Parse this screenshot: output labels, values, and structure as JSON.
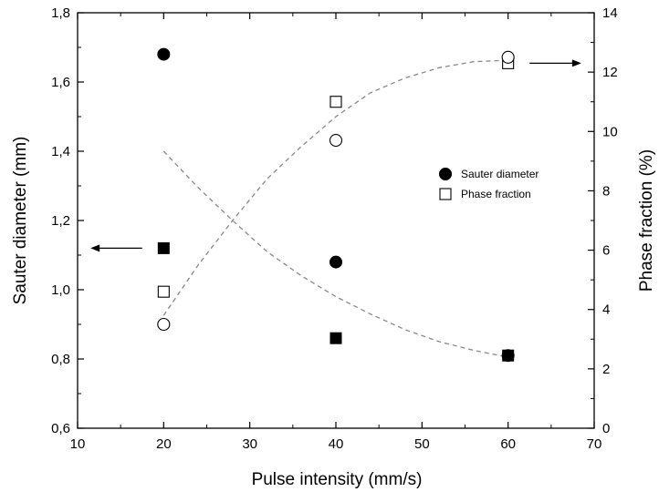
{
  "chart_data": {
    "type": "scatter",
    "xlabel": "Pulse intensity (mm/s)",
    "ylabel": "Sauter diameter (mm)",
    "y2label": "Phase fraction (%)",
    "xlim": [
      10,
      70
    ],
    "ylim": [
      0.6,
      1.8
    ],
    "y2lim": [
      0,
      14
    ],
    "xticks": [
      "10",
      "20",
      "30",
      "40",
      "50",
      "60",
      "70"
    ],
    "yticks": [
      "0,6",
      "0,8",
      "1,0",
      "1,2",
      "1,4",
      "1,6",
      "1,8"
    ],
    "y2ticks": [
      "0",
      "2",
      "4",
      "6",
      "8",
      "10",
      "12",
      "14"
    ],
    "grid": false,
    "legend_position": "right",
    "series": [
      {
        "name": "Sauter diameter",
        "axis": "left",
        "marker": "filled-circle",
        "x": [
          20,
          40,
          60
        ],
        "y": [
          1.68,
          1.08,
          0.81
        ]
      },
      {
        "name": "Phase fraction",
        "axis": "right",
        "marker": "open-square",
        "x": [
          20,
          40,
          60
        ],
        "y": [
          4.6,
          11.0,
          12.3
        ]
      },
      {
        "axis": "left",
        "marker": "filled-square",
        "x": [
          20,
          40,
          60
        ],
        "y": [
          1.12,
          0.86,
          0.81
        ]
      },
      {
        "axis": "right",
        "marker": "open-circle",
        "x": [
          20,
          40,
          60
        ],
        "y": [
          3.5,
          9.7,
          12.5
        ]
      }
    ],
    "fits": [
      {
        "axis": "left",
        "style": "dashed",
        "x": [
          20,
          24,
          28,
          32,
          36,
          40,
          44,
          48,
          52,
          56,
          60
        ],
        "y": [
          1.4,
          1.295,
          1.2,
          1.11,
          1.04,
          0.98,
          0.93,
          0.885,
          0.85,
          0.825,
          0.805
        ]
      },
      {
        "axis": "right",
        "style": "dashed",
        "x": [
          20,
          24,
          28,
          32,
          36,
          40,
          44,
          48,
          52,
          56,
          60
        ],
        "y": [
          3.8,
          5.5,
          7.0,
          8.4,
          9.5,
          10.5,
          11.3,
          11.8,
          12.15,
          12.35,
          12.4
        ]
      }
    ],
    "arrows": [
      {
        "axis": "left",
        "direction": "left",
        "x_from": 17.5,
        "x_to": 11.5,
        "y": 1.12
      },
      {
        "axis": "right",
        "direction": "right",
        "x_from": 62.5,
        "x_to": 68.5,
        "y": 12.3
      }
    ],
    "colors": {
      "markers": "#000000",
      "fit_lines": "#888888",
      "axes": "#000000"
    }
  }
}
